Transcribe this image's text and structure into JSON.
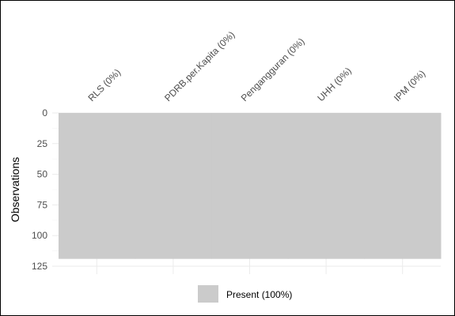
{
  "chart_data": {
    "type": "heatmap",
    "title": "",
    "xlabel": "",
    "ylabel": "Observations",
    "columns": [
      {
        "label": "RLS (0%)",
        "missing_pct": 0
      },
      {
        "label": "PDRB.per.Kapita (0%)",
        "missing_pct": 0
      },
      {
        "label": "Pengangguran (0%)",
        "missing_pct": 0
      },
      {
        "label": "UHH (0%)",
        "missing_pct": 0
      },
      {
        "label": "IPM (0%)",
        "missing_pct": 0
      }
    ],
    "observations": 119,
    "yticks": [
      0,
      25,
      50,
      75,
      100,
      125
    ],
    "ylim": [
      0,
      125
    ],
    "y_reversed": true,
    "grid": true,
    "legend": {
      "placement": "bottom",
      "items": [
        {
          "label": "Present (100%)",
          "color": "#cbcbcb"
        }
      ]
    },
    "colors": {
      "present": "#cbcbcb",
      "grid": "#ebebeb"
    }
  }
}
